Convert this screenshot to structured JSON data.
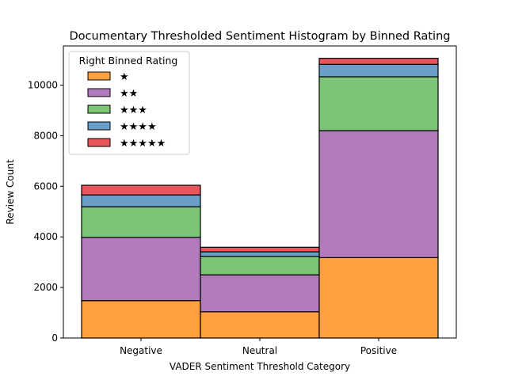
{
  "chart_data": {
    "type": "bar",
    "stacked": true,
    "title": "Documentary Thresholded Sentiment Histogram by Binned Rating",
    "xlabel": "VADER Sentiment Threshold Category",
    "ylabel": "Review Count",
    "categories": [
      "Negative",
      "Neutral",
      "Positive"
    ],
    "ylim": [
      0,
      11550
    ],
    "yticks": [
      0,
      2000,
      4000,
      6000,
      8000,
      10000
    ],
    "grid": false,
    "legend": {
      "title": "Right Binned Rating",
      "placement": "top-left"
    },
    "series": [
      {
        "name": "★",
        "color": "#ffa040",
        "values": [
          1480,
          1040,
          3180
        ]
      },
      {
        "name": "★★",
        "color": "#b27cbc",
        "values": [
          2500,
          1460,
          5020
        ]
      },
      {
        "name": "★★★",
        "color": "#7cc576",
        "values": [
          1210,
          730,
          2130
        ]
      },
      {
        "name": "★★★★",
        "color": "#6a9fca",
        "values": [
          470,
          180,
          490
        ]
      },
      {
        "name": "★★★★★",
        "color": "#e8555a",
        "values": [
          380,
          180,
          240
        ]
      }
    ]
  }
}
